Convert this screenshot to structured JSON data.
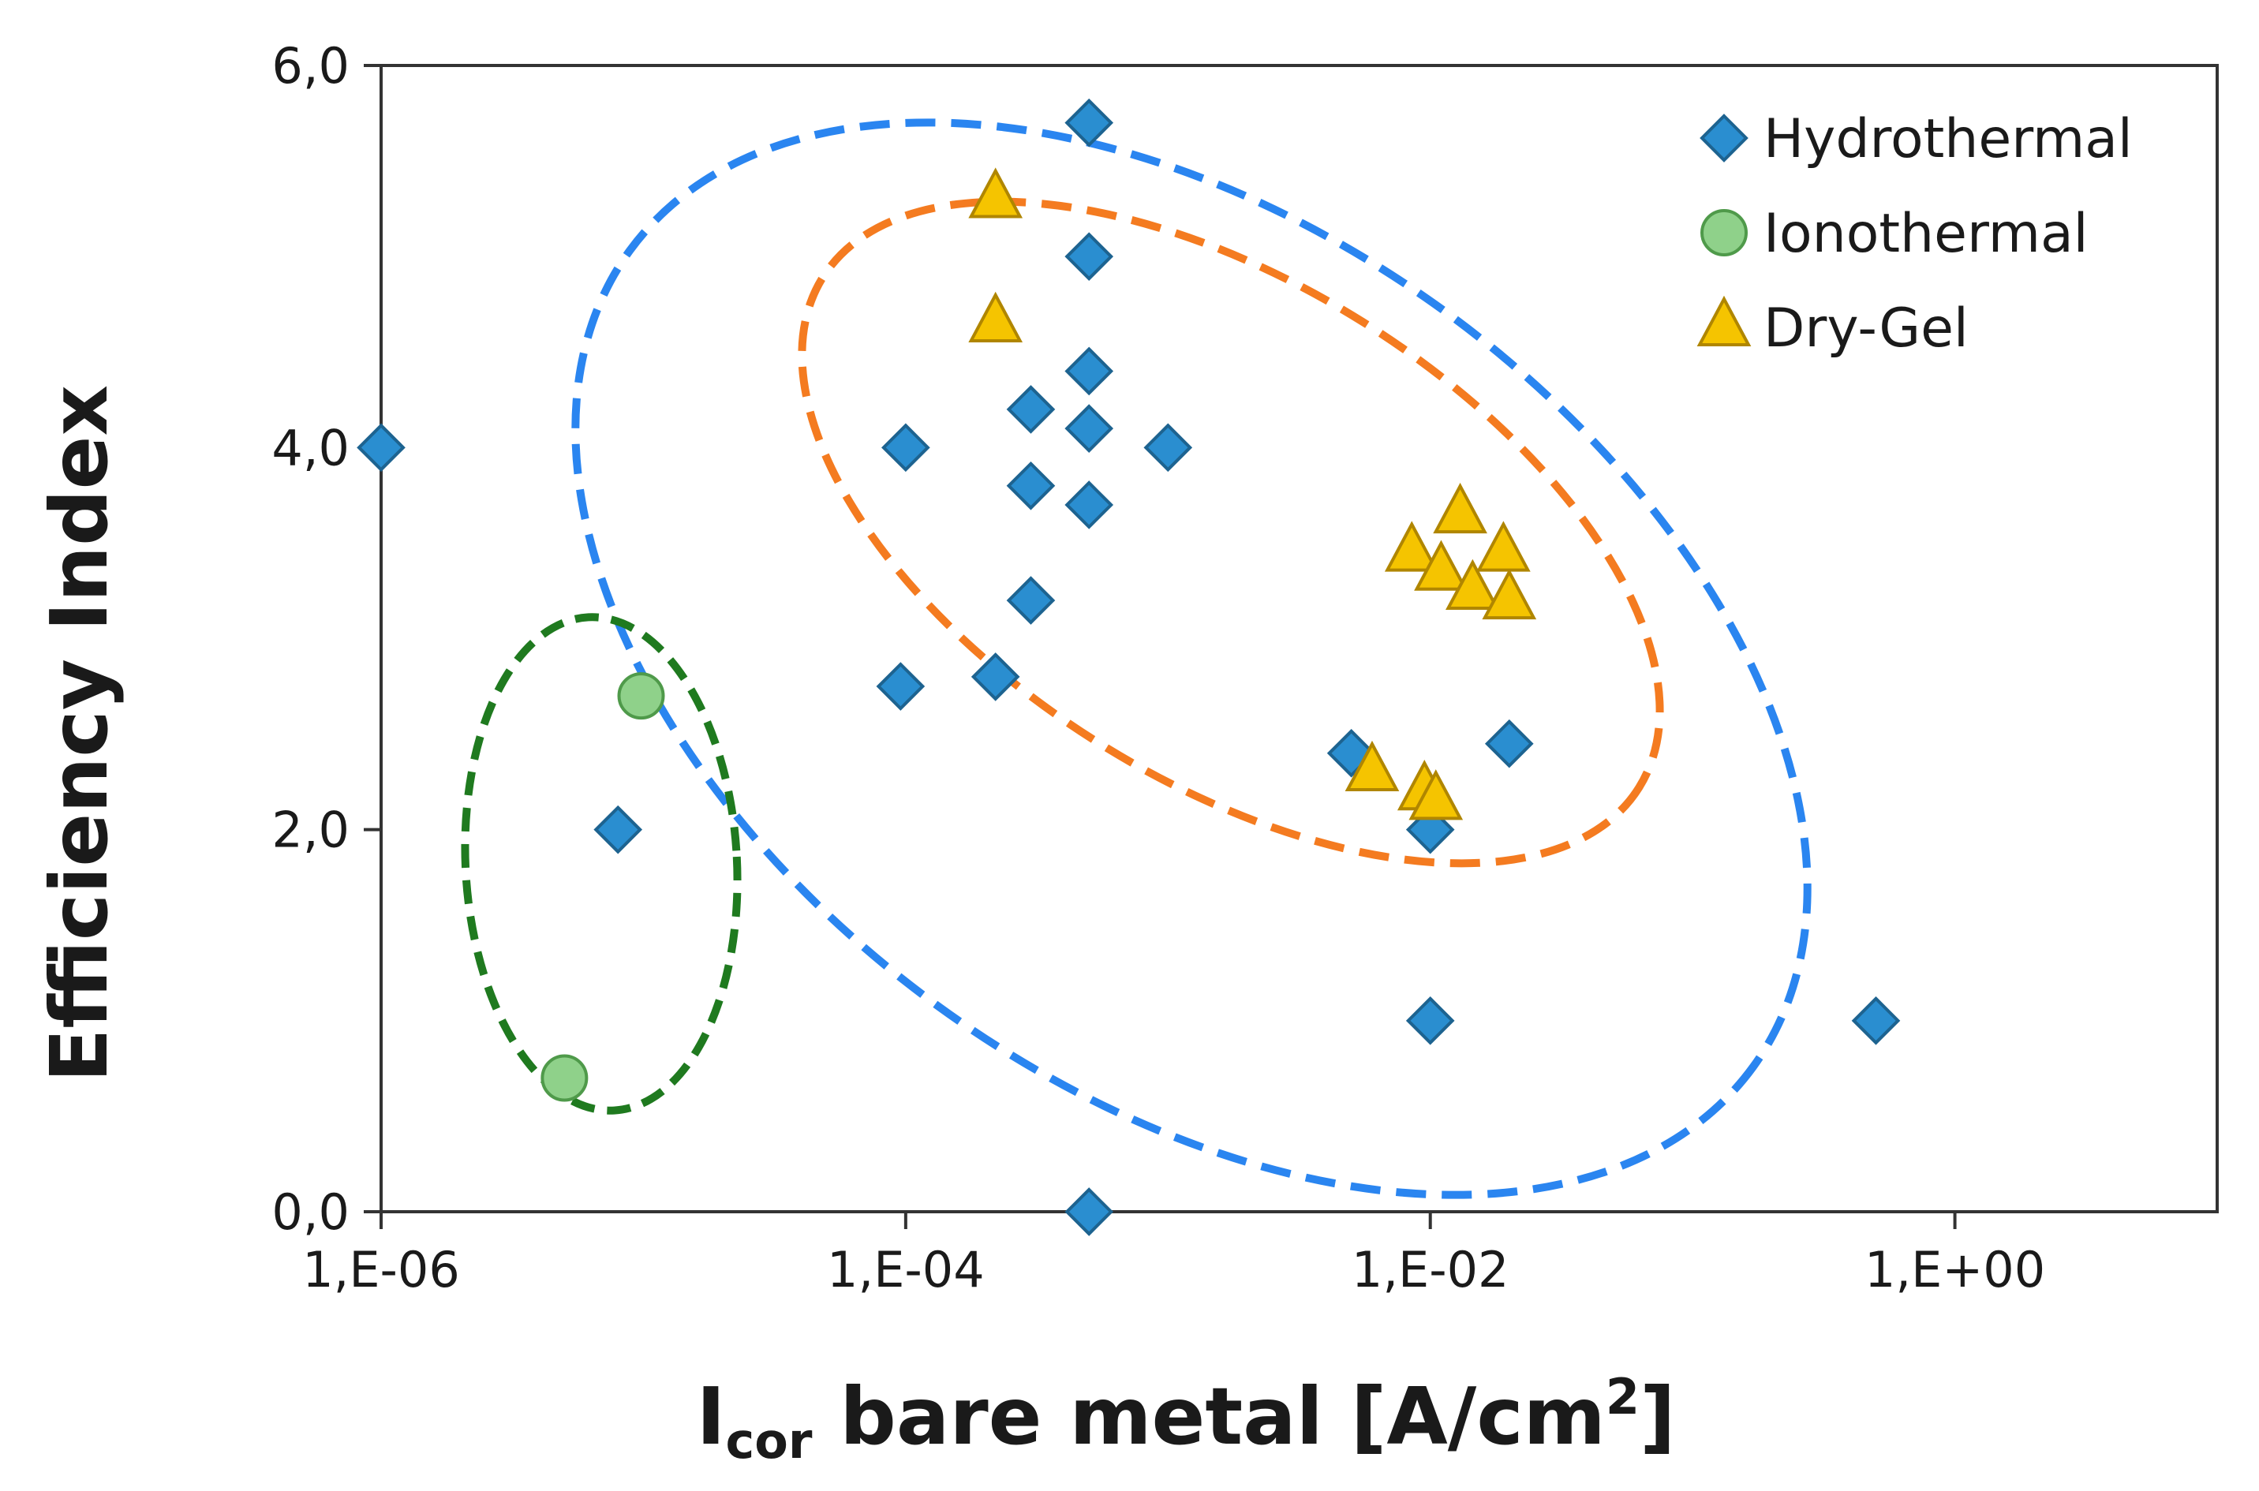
{
  "chart_data": {
    "type": "scatter",
    "title": "",
    "xlabel_main": "I",
    "xlabel_sub": "cor",
    "xlabel_rest": " bare metal [A/cm",
    "xlabel_sup": "2",
    "xlabel_end": "]",
    "ylabel": "Efficiency Index",
    "xscale": "log",
    "xlim": [
      1e-06,
      10
    ],
    "ylim": [
      0,
      6
    ],
    "x_ticks": [
      {
        "value": 1e-06,
        "label": "1,E-06"
      },
      {
        "value": 0.0001,
        "label": "1,E-04"
      },
      {
        "value": 0.01,
        "label": "1,E-02"
      },
      {
        "value": 1,
        "label": "1,E+00"
      }
    ],
    "y_ticks": [
      {
        "value": 0,
        "label": "0,0"
      },
      {
        "value": 2,
        "label": "2,0"
      },
      {
        "value": 4,
        "label": "4,0"
      },
      {
        "value": 6,
        "label": "6,0"
      }
    ],
    "grid": false,
    "legend_position": "top-right",
    "series": [
      {
        "name": "Hydrothermal",
        "marker": "diamond",
        "color": "#2a8ed0",
        "edge": "#1d6390",
        "points": [
          {
            "x": 1e-06,
            "y": 4.0
          },
          {
            "x": 8e-06,
            "y": 2.0
          },
          {
            "x": 9.56e-05,
            "y": 2.75
          },
          {
            "x": 0.0001,
            "y": 4.0
          },
          {
            "x": 0.00022,
            "y": 2.8
          },
          {
            "x": 0.0003,
            "y": 3.2
          },
          {
            "x": 0.0003,
            "y": 3.8
          },
          {
            "x": 0.0003,
            "y": 4.2
          },
          {
            "x": 0.0005,
            "y": 5.7
          },
          {
            "x": 0.0005,
            "y": 5.0
          },
          {
            "x": 0.0005,
            "y": 4.4
          },
          {
            "x": 0.0005,
            "y": 4.1
          },
          {
            "x": 0.0005,
            "y": 3.7
          },
          {
            "x": 0.0005,
            "y": 0.0
          },
          {
            "x": 0.001,
            "y": 4.0
          },
          {
            "x": 0.005,
            "y": 2.4
          },
          {
            "x": 0.01,
            "y": 2.0
          },
          {
            "x": 0.01,
            "y": 1.0
          },
          {
            "x": 0.02,
            "y": 2.45
          },
          {
            "x": 0.5,
            "y": 1.0
          }
        ]
      },
      {
        "name": "Ionothermal",
        "marker": "circle",
        "color": "#8fd18a",
        "edge": "#4f9a4a",
        "points": [
          {
            "x": 5e-06,
            "y": 0.7
          },
          {
            "x": 9.8e-06,
            "y": 2.7
          }
        ]
      },
      {
        "name": "Dry-Gel",
        "marker": "triangle",
        "color": "#f5c400",
        "edge": "#b08600",
        "points": [
          {
            "x": 0.00022,
            "y": 5.3
          },
          {
            "x": 0.00022,
            "y": 4.65
          },
          {
            "x": 0.006,
            "y": 2.3
          },
          {
            "x": 0.0085,
            "y": 3.45
          },
          {
            "x": 0.0095,
            "y": 2.2
          },
          {
            "x": 0.0105,
            "y": 2.15
          },
          {
            "x": 0.011,
            "y": 3.35
          },
          {
            "x": 0.013,
            "y": 3.65
          },
          {
            "x": 0.0145,
            "y": 3.25
          },
          {
            "x": 0.019,
            "y": 3.45
          },
          {
            "x": 0.02,
            "y": 3.2
          }
        ]
      }
    ],
    "group_outlines": [
      {
        "color": "#2a85f0",
        "style": "dashed"
      },
      {
        "color": "#f47b20",
        "style": "dashed"
      },
      {
        "color": "#1f7a1f",
        "style": "dashed"
      }
    ]
  }
}
